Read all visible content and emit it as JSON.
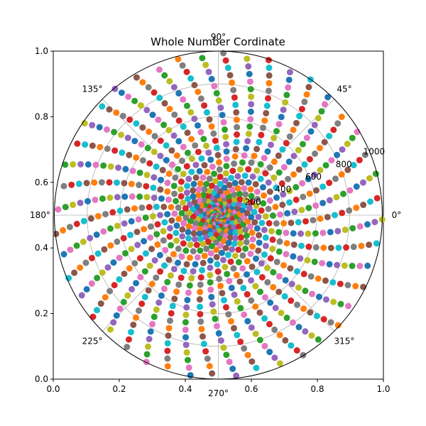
{
  "chart_data": {
    "type": "scatter",
    "projection": "polar",
    "title": "Whole Number Cordinate",
    "polar": {
      "r_max": 1000,
      "r_ticks": [
        200,
        400,
        600,
        800,
        1000
      ],
      "theta_ticks": [
        0,
        45,
        90,
        135,
        180,
        225,
        270,
        315
      ],
      "theta_tick_labels": [
        "0°",
        "45°",
        "90°",
        "135°",
        "180°",
        "225°",
        "270°",
        "315°"
      ],
      "grid": true
    },
    "cartesian_frame": {
      "xlim": [
        0,
        1
      ],
      "ylim": [
        0,
        1
      ],
      "x_ticks": [
        "0.0",
        "0.2",
        "0.4",
        "0.6",
        "0.8",
        "1.0"
      ],
      "y_ticks": [
        "0.0",
        "0.2",
        "0.4",
        "0.6",
        "0.8",
        "1.0"
      ]
    },
    "series": {
      "description": "Points at (theta = n radians, r = n) for whole numbers n",
      "n_start": 1,
      "n_end": 1000,
      "theta_units": "radians",
      "color_cycle": [
        "#1f77b4",
        "#ff7f0e",
        "#2ca02c",
        "#d62728",
        "#9467bd",
        "#8c564b",
        "#e377c2",
        "#7f7f7f",
        "#bcbd22",
        "#17becf"
      ]
    }
  }
}
